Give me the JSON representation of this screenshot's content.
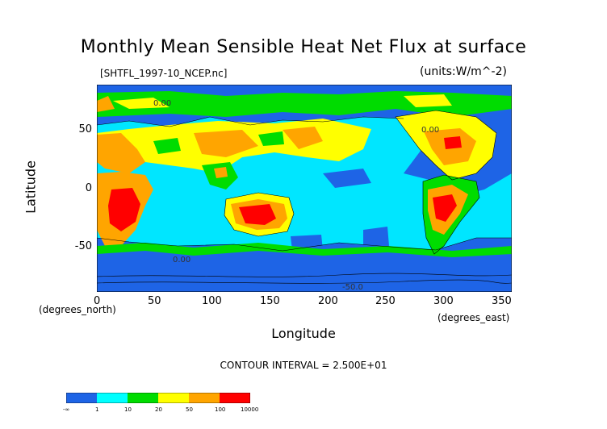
{
  "title": "Monthly Mean Sensible Heat Net Flux at surface",
  "filename": "[SHTFL_1997-10_NCEP.nc]",
  "units": "(units:W/m^-2)",
  "axes": {
    "y_title": "Latitude",
    "y_unit": "(degrees_north)",
    "y_ticks": [
      "50",
      "0",
      "-50"
    ],
    "x_title": "Longitude",
    "x_unit": "(degrees_east)",
    "x_ticks": [
      "0",
      "50",
      "100",
      "150",
      "200",
      "250",
      "300",
      "350"
    ]
  },
  "contour_interval": "CONTOUR INTERVAL = 2.500E+01",
  "contour_labels": [
    "0.00",
    "0.00",
    "0.00",
    "-50.0"
  ],
  "colorbar": {
    "colors": [
      "#1e64e6",
      "#00ffff",
      "#00dc00",
      "#ffff00",
      "#ffa500",
      "#ff0000"
    ],
    "labels": [
      "-∞",
      "1",
      "10",
      "20",
      "50",
      "100",
      "10000"
    ]
  },
  "map_colors": {
    "ocean_dark": "#1e64e6",
    "ocean_light": "#00e6ff",
    "green": "#00dc00",
    "yellow": "#ffff00",
    "orange": "#ffa500",
    "red": "#ff0000"
  }
}
